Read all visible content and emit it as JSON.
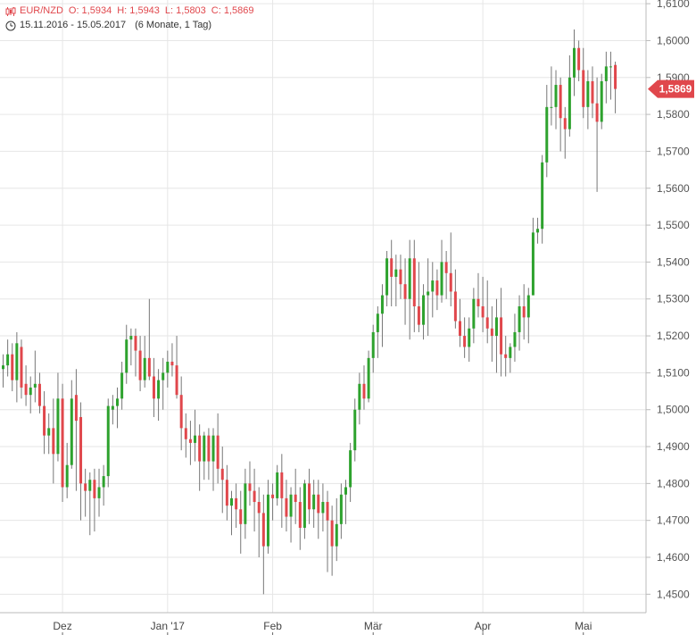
{
  "header": {
    "symbol": "EUR/NZD",
    "open": "O: 1,5934",
    "high": "H: 1,5943",
    "low": "L: 1,5803",
    "close": "C: 1,5869",
    "range": "15.11.2016 - 15.05.2017",
    "period": "(6 Monate, 1 Tag)"
  },
  "colors": {
    "up": "#2ea22e",
    "down": "#e0474c",
    "wick": "#777777",
    "grid": "#e6e6e6",
    "axis": "#bbbbbb",
    "badge": "#e0474c"
  },
  "chart_data": {
    "type": "candlestick",
    "ylim": [
      1.445,
      1.611
    ],
    "y_ticks": [
      1.45,
      1.46,
      1.47,
      1.48,
      1.49,
      1.5,
      1.51,
      1.52,
      1.53,
      1.54,
      1.55,
      1.56,
      1.57,
      1.58,
      1.59,
      1.6,
      1.61
    ],
    "y_tick_labels": [
      "1,4500",
      "1,4600",
      "1,4700",
      "1,4800",
      "1,4900",
      "1,5000",
      "1,5100",
      "1,5200",
      "1,5300",
      "1,5400",
      "1,5500",
      "1,5600",
      "1,5700",
      "1,5800",
      "1,5900",
      "1,6000",
      "1,6100"
    ],
    "x_labels": [
      {
        "label": "Dez",
        "index": 13
      },
      {
        "label": "Jan '17",
        "index": 36
      },
      {
        "label": "Feb",
        "index": 59
      },
      {
        "label": "Mär",
        "index": 81
      },
      {
        "label": "Apr",
        "index": 105
      },
      {
        "label": "Mai",
        "index": 127
      }
    ],
    "last_value": 1.5869,
    "last_label": "1,5869",
    "candles": [
      [
        1.511,
        1.515,
        1.506,
        1.512
      ],
      [
        1.512,
        1.519,
        1.509,
        1.515
      ],
      [
        1.515,
        1.518,
        1.505,
        1.508
      ],
      [
        1.508,
        1.521,
        1.502,
        1.518
      ],
      [
        1.517,
        1.519,
        1.503,
        1.506
      ],
      [
        1.507,
        1.512,
        1.501,
        1.504
      ],
      [
        1.504,
        1.509,
        1.499,
        1.506
      ],
      [
        1.506,
        1.516,
        1.502,
        1.507
      ],
      [
        1.507,
        1.51,
        1.499,
        1.501
      ],
      [
        1.501,
        1.505,
        1.488,
        1.493
      ],
      [
        1.493,
        1.499,
        1.488,
        1.495
      ],
      [
        1.495,
        1.503,
        1.48,
        1.488
      ],
      [
        1.488,
        1.51,
        1.486,
        1.503
      ],
      [
        1.503,
        1.507,
        1.475,
        1.479
      ],
      [
        1.479,
        1.491,
        1.476,
        1.485
      ],
      [
        1.485,
        1.508,
        1.484,
        1.503
      ],
      [
        1.504,
        1.511,
        1.478,
        1.497
      ],
      [
        1.498,
        1.502,
        1.47,
        1.48
      ],
      [
        1.48,
        1.484,
        1.471,
        1.478
      ],
      [
        1.478,
        1.483,
        1.466,
        1.481
      ],
      [
        1.481,
        1.484,
        1.467,
        1.476
      ],
      [
        1.476,
        1.484,
        1.471,
        1.479
      ],
      [
        1.479,
        1.485,
        1.474,
        1.482
      ],
      [
        1.482,
        1.503,
        1.479,
        1.501
      ],
      [
        1.5,
        1.504,
        1.496,
        1.501
      ],
      [
        1.501,
        1.506,
        1.495,
        1.503
      ],
      [
        1.503,
        1.513,
        1.5,
        1.51
      ],
      [
        1.51,
        1.523,
        1.507,
        1.519
      ],
      [
        1.519,
        1.522,
        1.512,
        1.52
      ],
      [
        1.52,
        1.522,
        1.509,
        1.516
      ],
      [
        1.516,
        1.52,
        1.505,
        1.508
      ],
      [
        1.508,
        1.52,
        1.506,
        1.514
      ],
      [
        1.514,
        1.53,
        1.508,
        1.509
      ],
      [
        1.509,
        1.514,
        1.498,
        1.503
      ],
      [
        1.503,
        1.511,
        1.497,
        1.508
      ],
      [
        1.508,
        1.514,
        1.5,
        1.51
      ],
      [
        1.51,
        1.516,
        1.506,
        1.513
      ],
      [
        1.513,
        1.518,
        1.509,
        1.512
      ],
      [
        1.512,
        1.52,
        1.503,
        1.504
      ],
      [
        1.504,
        1.509,
        1.489,
        1.495
      ],
      [
        1.495,
        1.499,
        1.487,
        1.492
      ],
      [
        1.492,
        1.497,
        1.485,
        1.491
      ],
      [
        1.491,
        1.5,
        1.486,
        1.493
      ],
      [
        1.493,
        1.496,
        1.478,
        1.486
      ],
      [
        1.486,
        1.494,
        1.481,
        1.493
      ],
      [
        1.493,
        1.495,
        1.481,
        1.486
      ],
      [
        1.486,
        1.495,
        1.478,
        1.493
      ],
      [
        1.493,
        1.499,
        1.48,
        1.484
      ],
      [
        1.484,
        1.49,
        1.472,
        1.481
      ],
      [
        1.481,
        1.485,
        1.47,
        1.474
      ],
      [
        1.474,
        1.478,
        1.466,
        1.476
      ],
      [
        1.476,
        1.48,
        1.468,
        1.473
      ],
      [
        1.473,
        1.478,
        1.461,
        1.469
      ],
      [
        1.469,
        1.484,
        1.465,
        1.48
      ],
      [
        1.48,
        1.486,
        1.474,
        1.478
      ],
      [
        1.478,
        1.484,
        1.467,
        1.475
      ],
      [
        1.475,
        1.479,
        1.46,
        1.472
      ],
      [
        1.472,
        1.477,
        1.45,
        1.463
      ],
      [
        1.463,
        1.481,
        1.461,
        1.477
      ],
      [
        1.477,
        1.48,
        1.47,
        1.476
      ],
      [
        1.476,
        1.485,
        1.474,
        1.483
      ],
      [
        1.483,
        1.488,
        1.468,
        1.476
      ],
      [
        1.476,
        1.481,
        1.467,
        1.471
      ],
      [
        1.471,
        1.479,
        1.464,
        1.477
      ],
      [
        1.477,
        1.484,
        1.469,
        1.475
      ],
      [
        1.475,
        1.479,
        1.462,
        1.468
      ],
      [
        1.468,
        1.481,
        1.465,
        1.48
      ],
      [
        1.48,
        1.484,
        1.469,
        1.473
      ],
      [
        1.473,
        1.481,
        1.468,
        1.477
      ],
      [
        1.477,
        1.481,
        1.465,
        1.472
      ],
      [
        1.472,
        1.48,
        1.467,
        1.475
      ],
      [
        1.475,
        1.478,
        1.456,
        1.47
      ],
      [
        1.47,
        1.474,
        1.455,
        1.463
      ],
      [
        1.463,
        1.476,
        1.459,
        1.469
      ],
      [
        1.469,
        1.48,
        1.465,
        1.477
      ],
      [
        1.477,
        1.481,
        1.469,
        1.479
      ],
      [
        1.479,
        1.491,
        1.475,
        1.489
      ],
      [
        1.489,
        1.503,
        1.486,
        1.5
      ],
      [
        1.5,
        1.51,
        1.496,
        1.507
      ],
      [
        1.507,
        1.512,
        1.5,
        1.503
      ],
      [
        1.503,
        1.516,
        1.502,
        1.514
      ],
      [
        1.514,
        1.523,
        1.51,
        1.521
      ],
      [
        1.521,
        1.528,
        1.514,
        1.526
      ],
      [
        1.526,
        1.534,
        1.517,
        1.531
      ],
      [
        1.531,
        1.543,
        1.528,
        1.541
      ],
      [
        1.541,
        1.546,
        1.528,
        1.536
      ],
      [
        1.536,
        1.542,
        1.528,
        1.538
      ],
      [
        1.538,
        1.542,
        1.53,
        1.534
      ],
      [
        1.534,
        1.541,
        1.523,
        1.53
      ],
      [
        1.53,
        1.546,
        1.519,
        1.541
      ],
      [
        1.541,
        1.546,
        1.521,
        1.528
      ],
      [
        1.528,
        1.54,
        1.521,
        1.523
      ],
      [
        1.523,
        1.534,
        1.519,
        1.531
      ],
      [
        1.531,
        1.541,
        1.52,
        1.532
      ],
      [
        1.532,
        1.54,
        1.525,
        1.535
      ],
      [
        1.535,
        1.538,
        1.527,
        1.531
      ],
      [
        1.531,
        1.546,
        1.529,
        1.54
      ],
      [
        1.54,
        1.543,
        1.53,
        1.537
      ],
      [
        1.537,
        1.548,
        1.528,
        1.532
      ],
      [
        1.532,
        1.538,
        1.522,
        1.524
      ],
      [
        1.524,
        1.53,
        1.517,
        1.52
      ],
      [
        1.52,
        1.525,
        1.514,
        1.517
      ],
      [
        1.517,
        1.525,
        1.513,
        1.522
      ],
      [
        1.522,
        1.533,
        1.518,
        1.53
      ],
      [
        1.53,
        1.537,
        1.525,
        1.528
      ],
      [
        1.528,
        1.536,
        1.521,
        1.525
      ],
      [
        1.525,
        1.535,
        1.518,
        1.522
      ],
      [
        1.522,
        1.528,
        1.513,
        1.52
      ],
      [
        1.52,
        1.53,
        1.51,
        1.525
      ],
      [
        1.525,
        1.533,
        1.509,
        1.515
      ],
      [
        1.515,
        1.52,
        1.509,
        1.514
      ],
      [
        1.514,
        1.518,
        1.51,
        1.517
      ],
      [
        1.517,
        1.526,
        1.513,
        1.521
      ],
      [
        1.521,
        1.531,
        1.516,
        1.528
      ],
      [
        1.528,
        1.534,
        1.519,
        1.525
      ],
      [
        1.525,
        1.533,
        1.518,
        1.531
      ],
      [
        1.531,
        1.552,
        1.531,
        1.548
      ],
      [
        1.548,
        1.552,
        1.545,
        1.549
      ],
      [
        1.549,
        1.569,
        1.545,
        1.567
      ],
      [
        1.567,
        1.588,
        1.563,
        1.582
      ],
      [
        1.582,
        1.593,
        1.577,
        1.582
      ],
      [
        1.582,
        1.592,
        1.576,
        1.588
      ],
      [
        1.588,
        1.59,
        1.57,
        1.579
      ],
      [
        1.579,
        1.582,
        1.568,
        1.576
      ],
      [
        1.576,
        1.596,
        1.574,
        1.59
      ],
      [
        1.59,
        1.603,
        1.585,
        1.598
      ],
      [
        1.598,
        1.6,
        1.589,
        1.592
      ],
      [
        1.592,
        1.598,
        1.579,
        1.582
      ],
      [
        1.582,
        1.592,
        1.576,
        1.589
      ],
      [
        1.589,
        1.593,
        1.579,
        1.583
      ],
      [
        1.583,
        1.59,
        1.559,
        1.578
      ],
      [
        1.578,
        1.591,
        1.576,
        1.589
      ],
      [
        1.589,
        1.597,
        1.583,
        1.593
      ],
      [
        1.593,
        1.597,
        1.584,
        1.593
      ],
      [
        1.5934,
        1.5943,
        1.5803,
        1.5869
      ]
    ]
  }
}
